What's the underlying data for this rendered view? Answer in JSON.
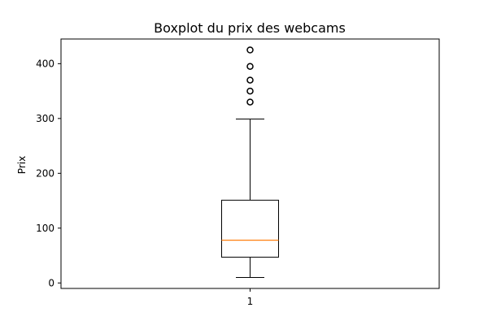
{
  "chart_data": {
    "type": "box",
    "title": "Boxplot du prix des webcams",
    "xlabel": "",
    "ylabel": "Prix",
    "categories": [
      "1"
    ],
    "ylim": [
      -10,
      445
    ],
    "yticks": [
      0,
      100,
      200,
      300,
      400
    ],
    "grid": false,
    "boxes": [
      {
        "category": "1",
        "whisker_low": 10,
        "q1": 47,
        "median": 78,
        "q3": 151,
        "whisker_high": 299,
        "outliers": [
          330,
          350,
          370,
          395,
          425
        ]
      }
    ],
    "colors": {
      "box": "#000000",
      "median": "#ff7f0e",
      "outlier": "#000000"
    }
  }
}
